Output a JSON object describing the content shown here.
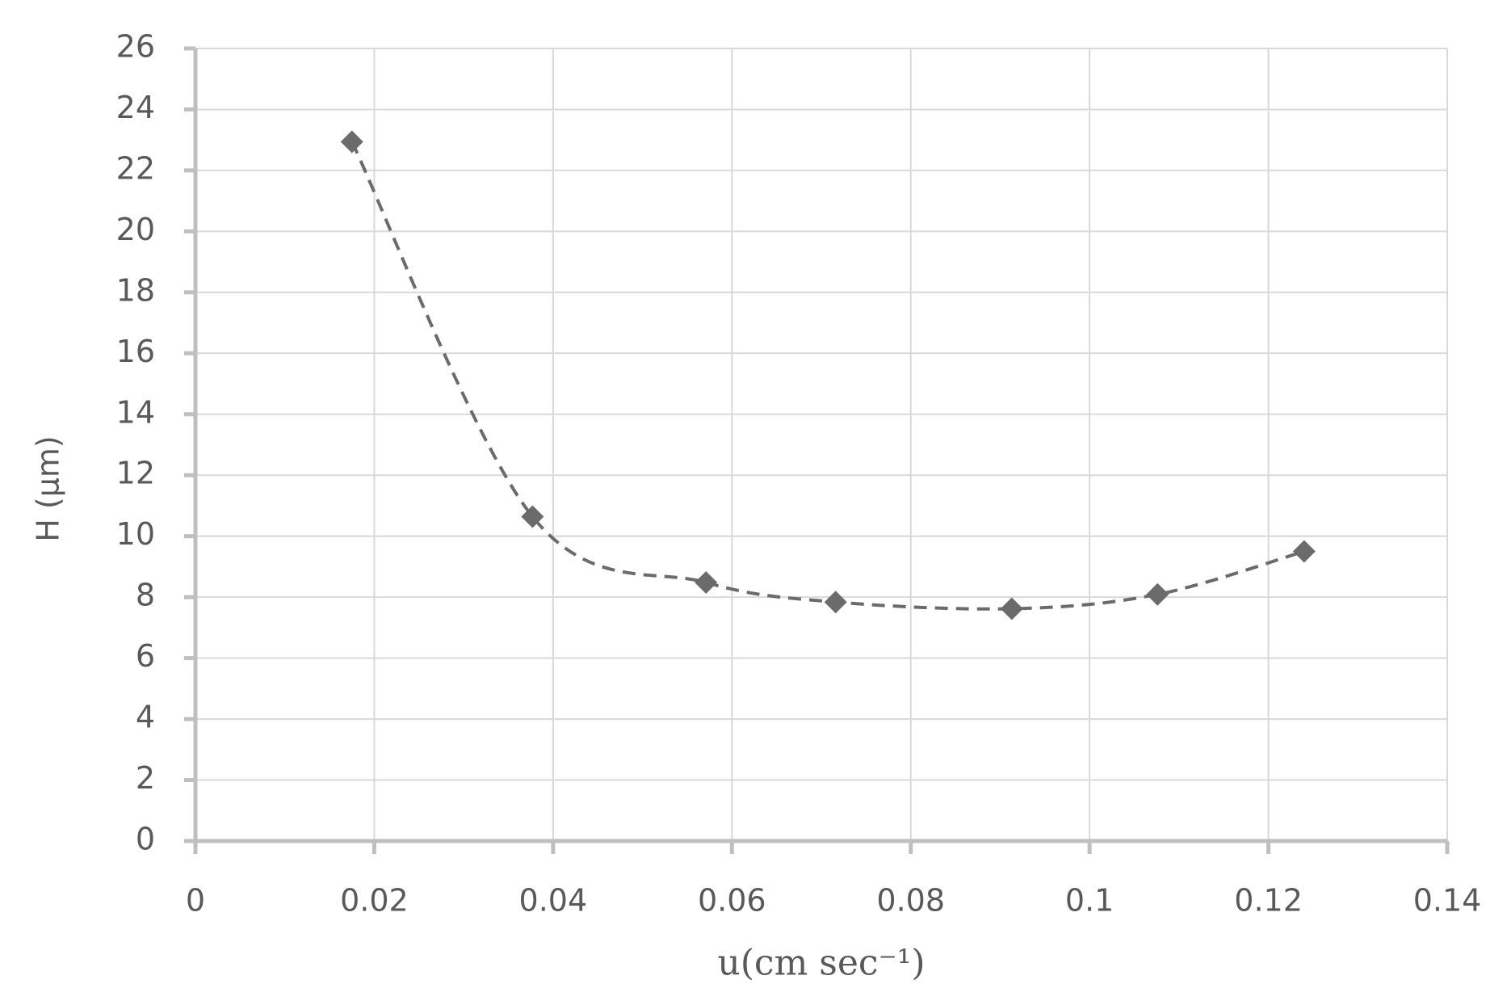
{
  "chart_data": {
    "type": "scatter",
    "x_label": "u(cm sec⁻¹)",
    "y_label": "H (µm)",
    "series": [
      {
        "color": "#6b6b6b",
        "trendline": true,
        "x": [
          0.0175,
          0.0377,
          0.0571,
          0.0716,
          0.0913,
          0.1076,
          0.124
        ],
        "values": [
          22.94,
          10.64,
          8.48,
          7.84,
          7.62,
          8.09,
          9.5
        ]
      }
    ],
    "xlim": [
      0,
      0.14
    ],
    "xticks": [
      0,
      0.02,
      0.04,
      0.06,
      0.08,
      0.1,
      0.12,
      0.14
    ],
    "ylim": [
      0,
      26
    ],
    "yticks": [
      0,
      2,
      4,
      6,
      8,
      10,
      12,
      14,
      16,
      18,
      20,
      22,
      24,
      26
    ],
    "grid": true
  }
}
